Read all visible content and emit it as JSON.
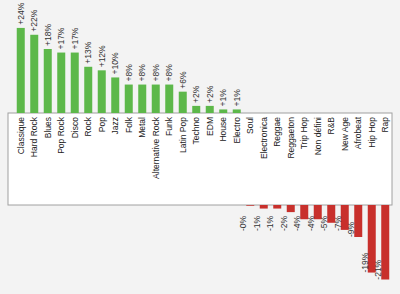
{
  "chart_data": {
    "type": "bar",
    "categories": [
      "Classique",
      "Hard Rock",
      "Blues",
      "Pop Rock",
      "Disco",
      "Rock",
      "Pop",
      "Jazz",
      "Folk",
      "Metal",
      "Alternative Rock",
      "Funk",
      "Latin Pop",
      "Techno",
      "EDM",
      "House",
      "Electro",
      "Soul",
      "Electronica",
      "Reggae",
      "Reggaeton",
      "Trip Hop",
      "Non défini",
      "R&B",
      "New Age",
      "Afrobeat",
      "Hip Hop",
      "Rap"
    ],
    "values": [
      24,
      22,
      18,
      17,
      17,
      13,
      12,
      10,
      8,
      8,
      8,
      8,
      6,
      2,
      2,
      1,
      1,
      -0.2,
      -1,
      -1,
      -2,
      -4,
      -4,
      -5,
      -7,
      -9,
      -19,
      -21
    ],
    "value_labels": [
      "+24%",
      "+22%",
      "+18%",
      "+17%",
      "+17%",
      "+13%",
      "+12%",
      "+10%",
      "+8%",
      "+8%",
      "+8%",
      "+8%",
      "+6%",
      "+2%",
      "+2%",
      "+1%",
      "+1%",
      "-0%",
      "-1%",
      "-1%",
      "-2%",
      "-4%",
      "-4%",
      "-5%",
      "-7%",
      "-9%",
      "-19%",
      "-21%"
    ],
    "colors": [
      "#5db84a",
      "#5db84a",
      "#5db84a",
      "#5db84a",
      "#5db84a",
      "#5db84a",
      "#5db84a",
      "#5db84a",
      "#5db84a",
      "#5db84a",
      "#5db84a",
      "#5db84a",
      "#5db84a",
      "#5db84a",
      "#5db84a",
      "#5db84a",
      "#5db84a",
      "#c8302c",
      "#c8302c",
      "#c8302c",
      "#c8302c",
      "#c8302c",
      "#c8302c",
      "#c8302c",
      "#c8302c",
      "#c8302c",
      "#c8302c",
      "#c8302c"
    ],
    "ylim": [
      -21,
      24
    ],
    "data_labels": true,
    "tick_labels": false
  }
}
